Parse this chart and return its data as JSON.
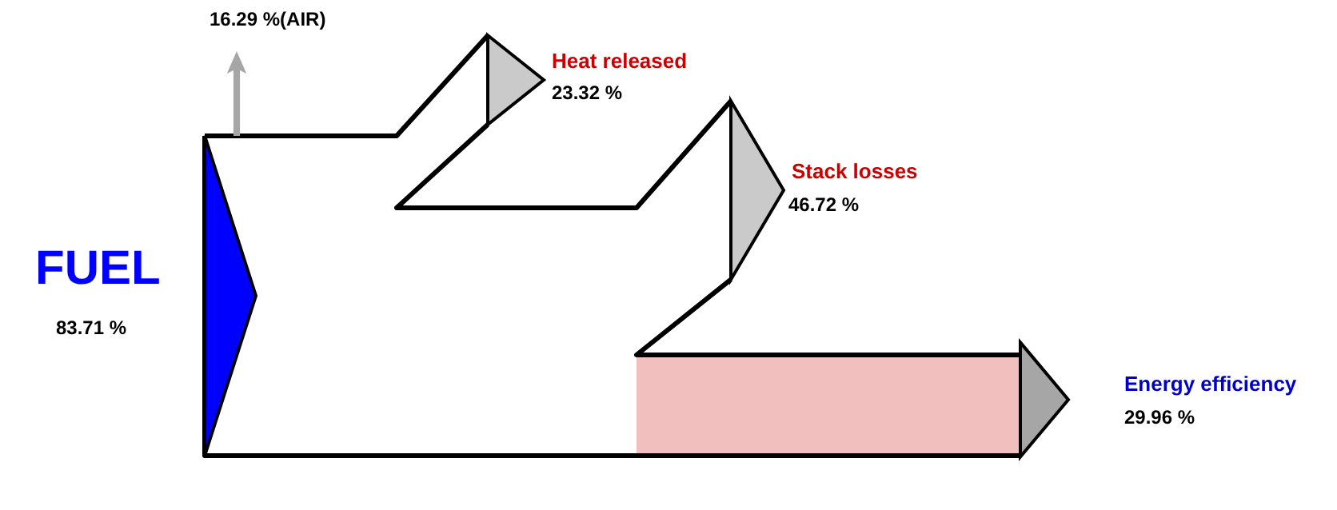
{
  "chart_data": {
    "type": "other",
    "categories": [
      "FUEL",
      "(AIR)",
      "Heat released",
      "Stack losses",
      "Energy efficiency"
    ],
    "values": [
      83.71,
      16.29,
      23.32,
      46.72,
      29.96
    ],
    "value_labels": [
      "83.71 %",
      "16.29 %",
      "23.32 %",
      "46.72 %",
      "29.96 %"
    ],
    "colors": [
      "#0000ff",
      "#a6a6a6",
      "#a6a6a6",
      "#a6a6a6",
      "#cc0000"
    ]
  }
}
